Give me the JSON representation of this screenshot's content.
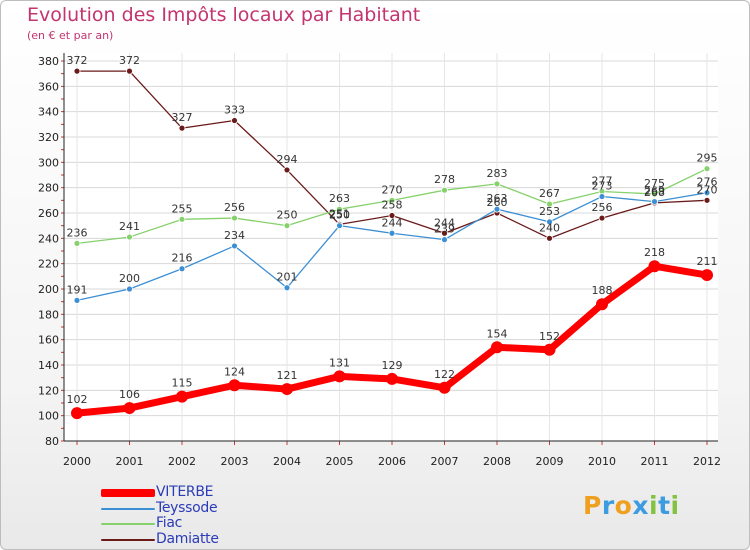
{
  "title": "Evolution des Impôts locaux par Habitant",
  "subtitle": "(en € et par an)",
  "logo": {
    "letters": [
      "P",
      "r",
      "o",
      "x",
      "i",
      "t",
      "i"
    ],
    "colors": [
      "#f0a020",
      "#3d9be0",
      "#f0a020",
      "#3d9be0",
      "#84c341",
      "#3d9be0",
      "#84c341"
    ]
  },
  "chart_data": {
    "type": "line",
    "categories": [
      "2000",
      "2001",
      "2002",
      "2003",
      "2004",
      "2005",
      "2006",
      "2007",
      "2008",
      "2009",
      "2010",
      "2011",
      "2012"
    ],
    "ylim": [
      80,
      380
    ],
    "yticks": [
      "80",
      "100",
      "120",
      "140",
      "160",
      "180",
      "200",
      "220",
      "240",
      "260",
      "280",
      "300",
      "320",
      "340",
      "360",
      "380"
    ],
    "grid": true,
    "legend_position": "bottom-left",
    "series": [
      {
        "name": "VITERBE",
        "color": "#ff0000",
        "values": [
          102,
          106,
          115,
          124,
          121,
          131,
          129,
          122,
          154,
          152,
          188,
          218,
          211
        ],
        "labels": [
          "102",
          "106",
          "115",
          "124",
          "121",
          "131",
          "129",
          "122",
          "154",
          "152",
          "188",
          "218",
          "211"
        ]
      },
      {
        "name": "Teyssode",
        "color": "#3d8fd4",
        "values": [
          191,
          200,
          216,
          234,
          201,
          250,
          244,
          239,
          263,
          253,
          273,
          269,
          276
        ],
        "labels": [
          "191",
          "200",
          "216",
          "234",
          "201",
          "250",
          "244",
          "239",
          "263",
          "253",
          "273",
          "269",
          "276"
        ]
      },
      {
        "name": "Fiac",
        "color": "#86d16b",
        "values": [
          236,
          241,
          255,
          256,
          250,
          263,
          270,
          278,
          283,
          267,
          277,
          275,
          295
        ],
        "labels": [
          "236",
          "241",
          "255",
          "256",
          "250",
          "263",
          "270",
          "278",
          "283",
          "267",
          "277",
          "275",
          "295"
        ]
      },
      {
        "name": "Damiatte",
        "color": "#6b1a1a",
        "values": [
          372,
          372,
          327,
          333,
          294,
          251,
          258,
          244,
          260,
          240,
          256,
          268,
          270
        ],
        "labels": [
          "372",
          "372",
          "327",
          "333",
          "294",
          "251",
          "258",
          "244",
          "260",
          "240",
          "256",
          "268",
          "270"
        ]
      }
    ]
  }
}
